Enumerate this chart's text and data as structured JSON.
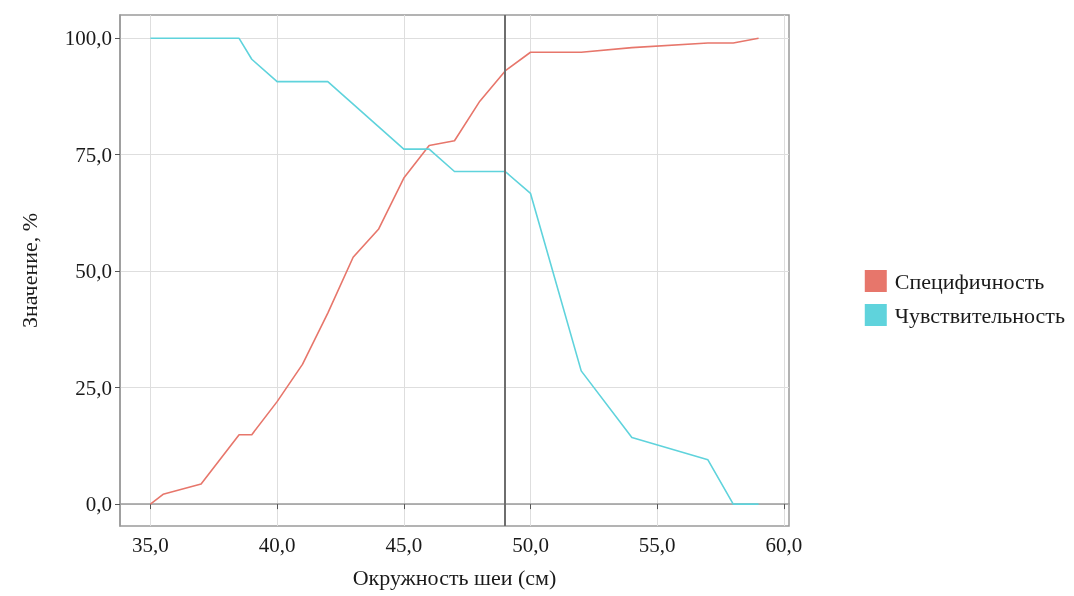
{
  "chart_data": {
    "type": "line",
    "xlabel": "Окружность шеи (см)",
    "ylabel": "Значение, %",
    "series": [
      {
        "name": "Специфичность",
        "color": "#e7766b",
        "x": [
          35,
          35.5,
          37,
          38.5,
          39,
          40,
          41,
          42,
          43,
          44,
          45,
          46,
          47,
          48,
          49,
          50,
          52,
          54,
          57,
          58,
          59
        ],
        "values": [
          0,
          2.1,
          4.3,
          14.9,
          14.9,
          22,
          30,
          41,
          53,
          59,
          70,
          77,
          78,
          86.5,
          93,
          97,
          97,
          98,
          99,
          99,
          100
        ]
      },
      {
        "name": "Чувствительность",
        "color": "#5fd3dc",
        "x": [
          35,
          38.5,
          39,
          40,
          42,
          45,
          46,
          47,
          49,
          50,
          52,
          54,
          57,
          58,
          59
        ],
        "values": [
          100,
          100,
          95.5,
          90.7,
          90.7,
          76.2,
          76.2,
          71.4,
          71.4,
          66.7,
          28.6,
          14.3,
          9.5,
          0,
          0
        ]
      }
    ],
    "xlim": [
      33.8,
      60.2
    ],
    "ylim": [
      -4.7,
      105
    ],
    "xticks": [
      {
        "value": 35,
        "label": "35,0"
      },
      {
        "value": 40,
        "label": "40,0"
      },
      {
        "value": 45,
        "label": "45,0"
      },
      {
        "value": 50,
        "label": "50,0"
      },
      {
        "value": 55,
        "label": "55,0"
      },
      {
        "value": 60,
        "label": "60,0"
      }
    ],
    "yticks": [
      {
        "value": 0,
        "label": "0,0"
      },
      {
        "value": 25,
        "label": "25,0"
      },
      {
        "value": 50,
        "label": "50,0"
      },
      {
        "value": 75,
        "label": "75,0"
      },
      {
        "value": 100,
        "label": "100,0"
      }
    ],
    "ref_lines": [
      {
        "axis": "x",
        "value": 49,
        "color": "#6e6e6e"
      }
    ],
    "grid": true,
    "legend": "right",
    "marker": "none",
    "line_style": "solid"
  }
}
